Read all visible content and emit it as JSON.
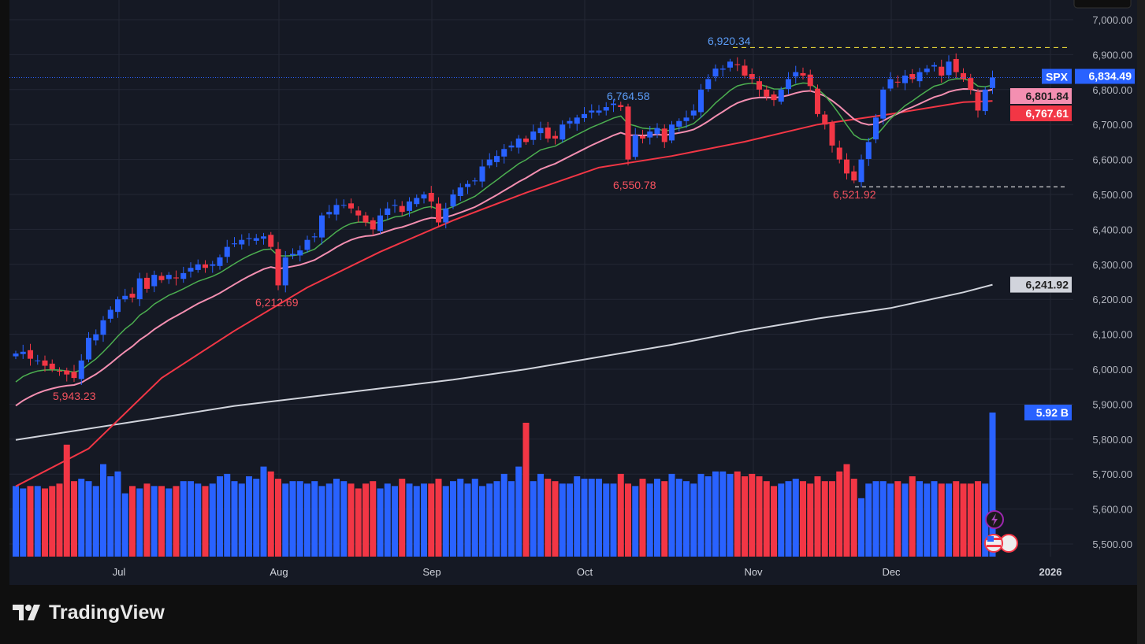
{
  "brand": "TradingView",
  "chart_data": {
    "type": "candlestick",
    "symbol": "SPX",
    "colors": {
      "up": "#2962ff",
      "down": "#f23645",
      "ma_fast": "#4caf50",
      "ma_mid": "#f48fb1",
      "ma_slow": "#f23645",
      "ma_long": "#d1d4dc",
      "high_line": "#ffeb3b",
      "low_line": "#ffffff"
    },
    "price_ticks": [
      "7,000.00",
      "6,900.00",
      "6,800.00",
      "6,700.00",
      "6,600.00",
      "6,500.00",
      "6,400.00",
      "6,300.00",
      "6,200.00",
      "6,100.00",
      "6,000.00",
      "5,900.00",
      "5,800.00",
      "5,700.00",
      "5,600.00",
      "5,500.00"
    ],
    "time_ticks": [
      "Jul",
      "Aug",
      "Sep",
      "Oct",
      "Nov",
      "Dec",
      "2026"
    ],
    "closes": [
      6045,
      6050,
      6030,
      6025,
      6010,
      6000,
      5995,
      5985,
      5975,
      6025,
      6090,
      6100,
      6140,
      6170,
      6200,
      6210,
      6205,
      6260,
      6230,
      6270,
      6255,
      6270,
      6260,
      6275,
      6290,
      6300,
      6290,
      6300,
      6320,
      6350,
      6360,
      6370,
      6375,
      6375,
      6380,
      6350,
      6240,
      6320,
      6330,
      6340,
      6370,
      6380,
      6440,
      6450,
      6470,
      6470,
      6460,
      6440,
      6420,
      6400,
      6440,
      6460,
      6470,
      6450,
      6480,
      6490,
      6500,
      6480,
      6420,
      6460,
      6500,
      6520,
      6530,
      6540,
      6580,
      6600,
      6610,
      6630,
      6640,
      6660,
      6650,
      6680,
      6690,
      6660,
      6660,
      6700,
      6710,
      6720,
      6730,
      6740,
      6740,
      6750,
      6760,
      6750,
      6600,
      6670,
      6660,
      6680,
      6690,
      6650,
      6700,
      6710,
      6720,
      6740,
      6800,
      6830,
      6860,
      6860,
      6880,
      6870,
      6840,
      6830,
      6800,
      6780,
      6770,
      6800,
      6830,
      6850,
      6840,
      6810,
      6730,
      6700,
      6640,
      6600,
      6560,
      6540,
      6600,
      6650,
      6720,
      6800,
      6830,
      6820,
      6840,
      6830,
      6850,
      6860,
      6870,
      6840,
      6880,
      6850,
      6830,
      6800,
      6740,
      6800,
      6834.49
    ],
    "volumes_billions": [
      2.9,
      2.8,
      2.9,
      2.9,
      2.8,
      2.9,
      3.0,
      4.6,
      3.1,
      3.2,
      3.1,
      2.9,
      3.8,
      3.3,
      3.5,
      2.6,
      2.9,
      2.8,
      3.0,
      2.9,
      2.9,
      2.8,
      2.9,
      3.1,
      3.1,
      3.0,
      2.9,
      3.0,
      3.3,
      3.4,
      3.1,
      3.0,
      3.3,
      3.2,
      3.7,
      3.5,
      3.2,
      3.0,
      3.1,
      3.1,
      3.0,
      3.1,
      2.9,
      3.0,
      3.2,
      3.1,
      3.0,
      2.8,
      3.0,
      3.1,
      2.8,
      3.0,
      2.9,
      3.2,
      3.0,
      2.9,
      3.0,
      3.0,
      3.2,
      2.9,
      3.1,
      3.2,
      3.0,
      3.2,
      2.9,
      3.0,
      3.1,
      3.4,
      3.1,
      3.7,
      5.5,
      3.1,
      3.4,
      3.2,
      3.1,
      3.0,
      3.0,
      3.3,
      3.2,
      3.2,
      3.2,
      3.0,
      3.0,
      3.4,
      3.0,
      2.9,
      3.2,
      3.0,
      3.2,
      3.1,
      3.4,
      3.2,
      3.1,
      3.0,
      3.4,
      3.3,
      3.5,
      3.5,
      3.4,
      3.5,
      3.3,
      3.4,
      3.3,
      3.1,
      2.9,
      3.0,
      3.1,
      3.2,
      3.1,
      3.0,
      3.3,
      3.1,
      3.1,
      3.5,
      3.8,
      3.2,
      2.4,
      3.0,
      3.1,
      3.1,
      3.0,
      3.1,
      3.0,
      3.3,
      3.1,
      3.0,
      3.1,
      3.0,
      3.0,
      3.1,
      3.0,
      3.0,
      3.1,
      3.0,
      5.92
    ],
    "ma_slow_samples": [
      5665,
      5773,
      5975,
      6110,
      6234,
      6336,
      6426,
      6505,
      6577,
      6610,
      6651,
      6700,
      6730,
      6764,
      6767.61
    ],
    "ma_long_samples": [
      5798,
      5830,
      5862,
      5895,
      5920,
      5945,
      5970,
      6000,
      6035,
      6070,
      6110,
      6145,
      6175,
      6220,
      6241.92
    ],
    "last_price": "6,834.49",
    "ma_mid_value": "6,801.84",
    "ma_slow_value": "6,767.61",
    "ma_long_value": "6,241.92",
    "volume_value": "5.92 B",
    "annotations": {
      "high": "6,920.34",
      "low": "6,521.92",
      "a1": "6,764.58",
      "a2": "6,550.78",
      "a3": "6,212.69",
      "a4": "5,943.23"
    },
    "high_level": 6920.34,
    "low_level": 6521.92,
    "grid": true
  }
}
